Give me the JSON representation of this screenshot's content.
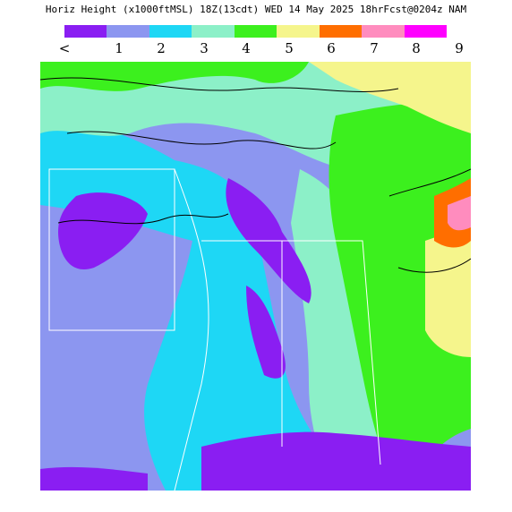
{
  "header": {
    "title": "Horiz Height (x1000ftMSL) 18Z(13cdt) WED 14 May 2025 18hrFcst@0204z NAM"
  },
  "legend": {
    "colors": [
      "#8a1ef2",
      "#8c96f0",
      "#1ed7f5",
      "#8cf0c8",
      "#3cf01e",
      "#f5f58c",
      "#ff6e00",
      "#ff8cbe",
      "#ff00ff"
    ],
    "labels": [
      "<",
      "1",
      "2",
      "3",
      "4",
      "5",
      "6",
      "7",
      "8",
      "9"
    ]
  },
  "map": {
    "background_color": "#ffffff",
    "colors": {
      "lt1": "#8a1ef2",
      "one": "#8c96f0",
      "two": "#1ed7f5",
      "three": "#8cf0c8",
      "four": "#3cf01e",
      "five": "#f5f58c",
      "six": "#ff6e00",
      "seven": "#ff8cbe"
    }
  }
}
